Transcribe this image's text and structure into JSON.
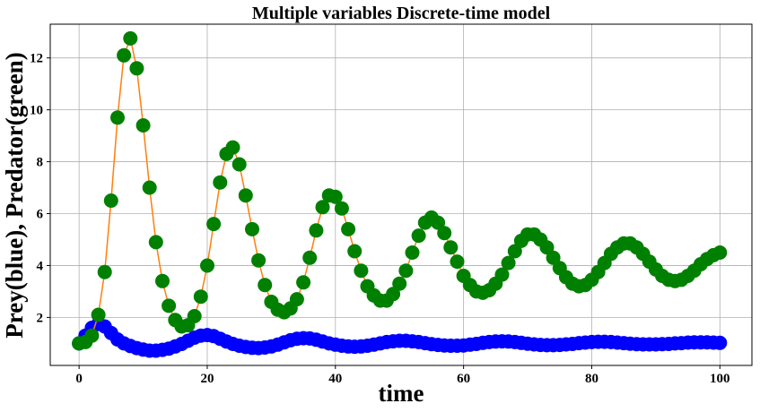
{
  "chart_data": {
    "type": "line",
    "title": "Multiple variables Discrete-time model",
    "xlabel": "time",
    "ylabel": "Prey(blue), Predator(green)",
    "xlim": [
      -4.5,
      105
    ],
    "ylim": [
      0.15,
      13.3
    ],
    "xticks": [
      0,
      20,
      40,
      60,
      80,
      100
    ],
    "yticks": [
      2,
      4,
      6,
      8,
      10,
      12
    ],
    "grid": true,
    "colors": {
      "prey_markers": "#0000ff",
      "prey_line": "#1f77b4",
      "predator_markers": "#008000",
      "predator_line": "#ff7f0e"
    },
    "x": [
      0,
      1,
      2,
      3,
      4,
      5,
      6,
      7,
      8,
      9,
      10,
      11,
      12,
      13,
      14,
      15,
      16,
      17,
      18,
      19,
      20,
      21,
      22,
      23,
      24,
      25,
      26,
      27,
      28,
      29,
      30,
      31,
      32,
      33,
      34,
      35,
      36,
      37,
      38,
      39,
      40,
      41,
      42,
      43,
      44,
      45,
      46,
      47,
      48,
      49,
      50,
      51,
      52,
      53,
      54,
      55,
      56,
      57,
      58,
      59,
      60,
      61,
      62,
      63,
      64,
      65,
      66,
      67,
      68,
      69,
      70,
      71,
      72,
      73,
      74,
      75,
      76,
      77,
      78,
      79,
      80,
      81,
      82,
      83,
      84,
      85,
      86,
      87,
      88,
      89,
      90,
      91,
      92,
      93,
      94,
      95,
      96,
      97,
      98,
      99,
      100
    ],
    "series": [
      {
        "key": "prey",
        "values": [
          1.0,
          1.3,
          1.6,
          1.75,
          1.65,
          1.4,
          1.15,
          1.0,
          0.9,
          0.82,
          0.76,
          0.72,
          0.72,
          0.75,
          0.8,
          0.88,
          0.98,
          1.1,
          1.22,
          1.3,
          1.32,
          1.28,
          1.18,
          1.07,
          0.98,
          0.91,
          0.86,
          0.83,
          0.82,
          0.84,
          0.88,
          0.95,
          1.04,
          1.12,
          1.18,
          1.2,
          1.19,
          1.14,
          1.07,
          1.0,
          0.95,
          0.91,
          0.88,
          0.87,
          0.88,
          0.91,
          0.95,
          1.0,
          1.05,
          1.08,
          1.1,
          1.1,
          1.08,
          1.05,
          1.01,
          0.97,
          0.94,
          0.92,
          0.91,
          0.91,
          0.92,
          0.95,
          0.98,
          1.02,
          1.05,
          1.07,
          1.08,
          1.07,
          1.05,
          1.02,
          0.99,
          0.96,
          0.94,
          0.93,
          0.93,
          0.94,
          0.96,
          0.98,
          1.01,
          1.03,
          1.05,
          1.06,
          1.06,
          1.05,
          1.03,
          1.01,
          0.99,
          0.97,
          0.96,
          0.96,
          0.96,
          0.97,
          0.98,
          1.0,
          1.01,
          1.03,
          1.04,
          1.04,
          1.04,
          1.03,
          1.02
        ]
      },
      {
        "key": "predator",
        "values": [
          1.0,
          1.05,
          1.3,
          2.1,
          3.75,
          6.5,
          9.7,
          12.1,
          12.75,
          11.6,
          9.4,
          7.0,
          4.9,
          3.4,
          2.45,
          1.9,
          1.65,
          1.7,
          2.05,
          2.8,
          4.0,
          5.6,
          7.2,
          8.3,
          8.55,
          7.9,
          6.7,
          5.4,
          4.2,
          3.25,
          2.6,
          2.3,
          2.2,
          2.35,
          2.7,
          3.35,
          4.3,
          5.35,
          6.25,
          6.7,
          6.65,
          6.2,
          5.4,
          4.55,
          3.8,
          3.2,
          2.85,
          2.65,
          2.65,
          2.9,
          3.3,
          3.8,
          4.5,
          5.15,
          5.65,
          5.85,
          5.65,
          5.25,
          4.7,
          4.15,
          3.6,
          3.25,
          3.0,
          2.95,
          3.05,
          3.3,
          3.65,
          4.1,
          4.55,
          4.95,
          5.2,
          5.2,
          5.0,
          4.7,
          4.3,
          3.9,
          3.55,
          3.3,
          3.2,
          3.25,
          3.45,
          3.75,
          4.1,
          4.45,
          4.7,
          4.85,
          4.85,
          4.7,
          4.45,
          4.15,
          3.85,
          3.6,
          3.45,
          3.4,
          3.45,
          3.6,
          3.8,
          4.05,
          4.25,
          4.4,
          4.5
        ]
      }
    ]
  }
}
